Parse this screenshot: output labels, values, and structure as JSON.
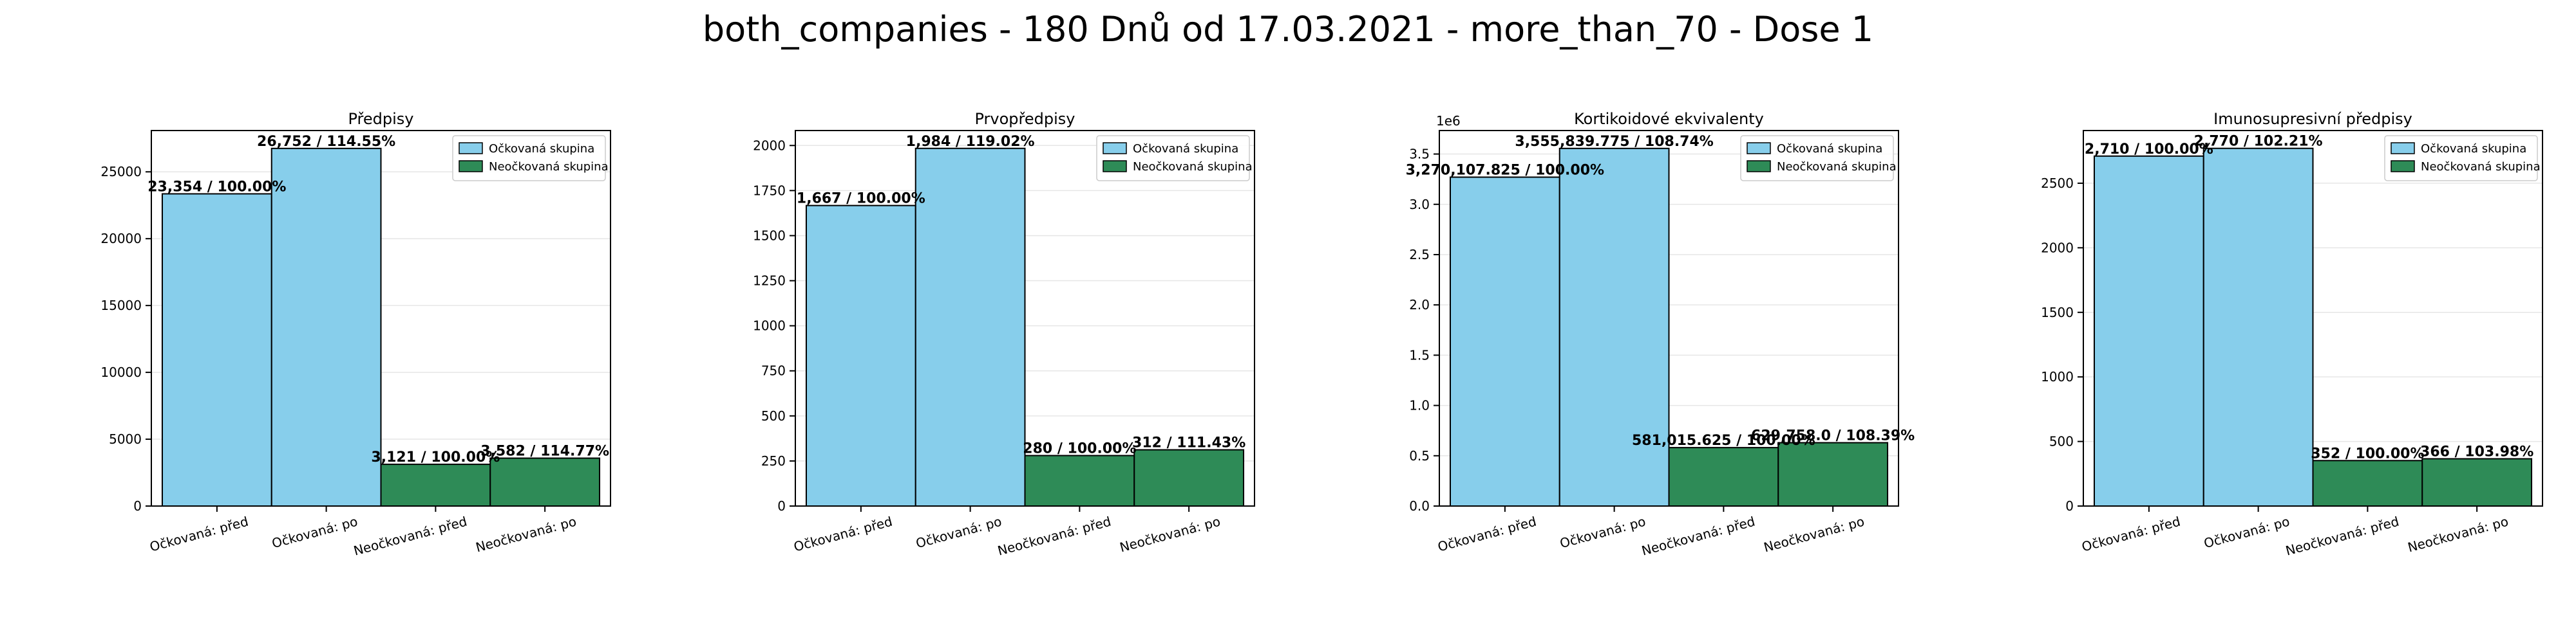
{
  "figure": {
    "suptitle": "both_companies - 180 Dnů od 17.03.2021 - more_than_70 - Dose 1"
  },
  "colors": {
    "vaccinated": "#87ceeb",
    "unvaccinated": "#2e8b57",
    "grid": "#e6e6e6",
    "edge": "#000000"
  },
  "chart_data": [
    {
      "type": "bar",
      "title": "Předpisy",
      "categories": [
        "Očkovaná: před",
        "Očkovaná: po",
        "Neočkovaná: před",
        "Neočkovaná: po"
      ],
      "values": [
        23354,
        26752,
        3121,
        3582
      ],
      "data_labels": [
        "23,354 / 100.00%",
        "26,752 / 114.55%",
        "3,121 / 100.00%",
        "3,582 / 114.77%"
      ],
      "groups": [
        "vaccinated",
        "vaccinated",
        "unvaccinated",
        "unvaccinated"
      ],
      "ylim": [
        0,
        28090
      ],
      "yticks": [
        0,
        5000,
        10000,
        15000,
        20000,
        25000
      ],
      "ytick_labels": [
        "0",
        "5000",
        "10000",
        "15000",
        "20000",
        "25000"
      ],
      "offset_text": "",
      "legend": [
        "Očkovaná skupina",
        "Neočkovaná skupina"
      ],
      "legend_position": "top-right",
      "grid": "y"
    },
    {
      "type": "bar",
      "title": "Prvopředpisy",
      "categories": [
        "Očkovaná: před",
        "Očkovaná: po",
        "Neočkovaná: před",
        "Neočkovaná: po"
      ],
      "values": [
        1667,
        1984,
        280,
        312
      ],
      "data_labels": [
        "1,667 / 100.00%",
        "1,984 / 119.02%",
        "280 / 100.00%",
        "312 / 111.43%"
      ],
      "groups": [
        "vaccinated",
        "vaccinated",
        "unvaccinated",
        "unvaccinated"
      ],
      "ylim": [
        0,
        2083
      ],
      "yticks": [
        0,
        250,
        500,
        750,
        1000,
        1250,
        1500,
        1750,
        2000
      ],
      "ytick_labels": [
        "0",
        "250",
        "500",
        "750",
        "1000",
        "1250",
        "1500",
        "1750",
        "2000"
      ],
      "offset_text": "",
      "legend": [
        "Očkovaná skupina",
        "Neočkovaná skupina"
      ],
      "legend_position": "top-right",
      "grid": "y"
    },
    {
      "type": "bar",
      "title": "Kortikoidové ekvivalenty",
      "categories": [
        "Očkovaná: před",
        "Očkovaná: po",
        "Neočkovaná: před",
        "Neočkovaná: po"
      ],
      "values": [
        3270107.825,
        3555839.775,
        581015.625,
        629758.0
      ],
      "data_labels": [
        "3,270,107.825 / 100.00%",
        "3,555,839.775 / 108.74%",
        "581,015.625 / 100.00%",
        "629,758.0 / 108.39%"
      ],
      "groups": [
        "vaccinated",
        "vaccinated",
        "unvaccinated",
        "unvaccinated"
      ],
      "ylim": [
        0,
        3733632
      ],
      "yticks": [
        0,
        500000,
        1000000,
        1500000,
        2000000,
        2500000,
        3000000,
        3500000
      ],
      "ytick_labels": [
        "0.0",
        "0.5",
        "1.0",
        "1.5",
        "2.0",
        "2.5",
        "3.0",
        "3.5"
      ],
      "offset_text": "1e6",
      "legend": [
        "Očkovaná skupina",
        "Neočkovaná skupina"
      ],
      "legend_position": "top-right",
      "grid": "y"
    },
    {
      "type": "bar",
      "title": "Imunosupresivní předpisy",
      "categories": [
        "Očkovaná: před",
        "Očkovaná: po",
        "Neočkovaná: před",
        "Neočkovaná: po"
      ],
      "values": [
        2710,
        2770,
        352,
        366
      ],
      "data_labels": [
        "2,710 / 100.00%",
        "2,770 / 102.21%",
        "352 / 100.00%",
        "366 / 103.98%"
      ],
      "groups": [
        "vaccinated",
        "vaccinated",
        "unvaccinated",
        "unvaccinated"
      ],
      "ylim": [
        0,
        2908
      ],
      "yticks": [
        0,
        500,
        1000,
        1500,
        2000,
        2500
      ],
      "ytick_labels": [
        "0",
        "500",
        "1000",
        "1500",
        "2000",
        "2500"
      ],
      "offset_text": "",
      "legend": [
        "Očkovaná skupina",
        "Neočkovaná skupina"
      ],
      "legend_position": "top-right",
      "grid": "y"
    }
  ]
}
